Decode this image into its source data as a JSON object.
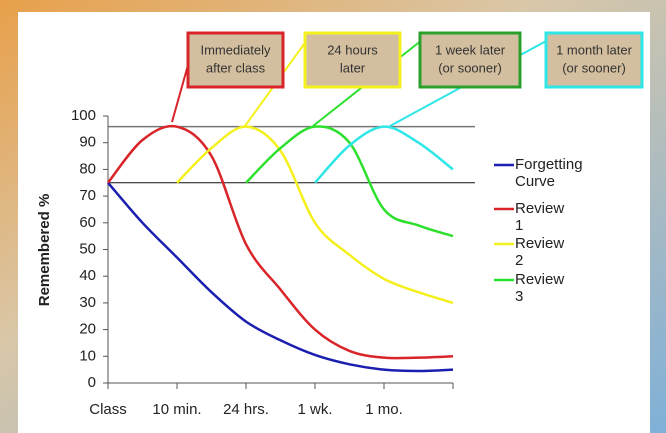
{
  "chart_data": {
    "type": "line",
    "ylabel": "Remembered %",
    "x": [
      0,
      0.5,
      1,
      1.5,
      2,
      2.5,
      3,
      3.5,
      4,
      4.5,
      5
    ],
    "xlim": [
      0,
      5
    ],
    "xticks": [
      {
        "value": 0,
        "label": "Class"
      },
      {
        "value": 1,
        "label": "10 min."
      },
      {
        "value": 2,
        "label": "24 hrs."
      },
      {
        "value": 3,
        "label": "1 wk."
      },
      {
        "value": 4,
        "label": "1 mo."
      }
    ],
    "ylim": [
      0,
      100
    ],
    "yticks": [
      0,
      10,
      20,
      30,
      40,
      50,
      60,
      70,
      80,
      90,
      100
    ],
    "reference_lines": [
      96,
      75
    ],
    "series": [
      {
        "name": "Forgetting Curve",
        "color": "#1a1fb0",
        "values": [
          75,
          60,
          47,
          34,
          23,
          16,
          10.5,
          7,
          5,
          4.5,
          5
        ]
      },
      {
        "name": "Review 1",
        "color": "#d9252a",
        "values": [
          75,
          91,
          96,
          85,
          52,
          35,
          20,
          12,
          9.5,
          9.5,
          10
        ]
      },
      {
        "name": "Review 2",
        "color": "#f4f01e",
        "values": [
          null,
          null,
          75,
          88,
          96,
          87,
          60,
          48,
          39,
          34,
          30
        ]
      },
      {
        "name": "Review 3",
        "color": "#2ee02e",
        "values": [
          null,
          null,
          null,
          null,
          75,
          88,
          96,
          90,
          65,
          59,
          55
        ]
      },
      {
        "name": "",
        "color": "#2ee6e6",
        "values": [
          null,
          null,
          null,
          null,
          null,
          null,
          75,
          89,
          96,
          90,
          80
        ]
      }
    ],
    "annotations": [
      {
        "lines": [
          "Immediately",
          "after class"
        ],
        "color": "#d9252a"
      },
      {
        "lines": [
          "24 hours",
          "later"
        ],
        "color": "#f4f01e"
      },
      {
        "lines": [
          "1 week later",
          "(or sooner)"
        ],
        "color": "#2aa02a"
      },
      {
        "lines": [
          "1 month later",
          "(or sooner)"
        ],
        "color": "#2ee6e6"
      }
    ]
  }
}
